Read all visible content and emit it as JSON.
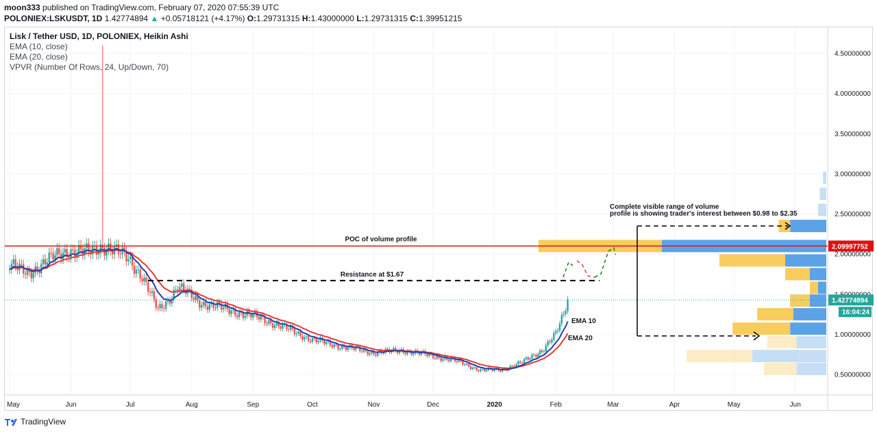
{
  "header": {
    "author": "moon333",
    "published_text": " published on TradingView.com, February 07, 2020 07:55:39 UTC",
    "symbol": "POLONIEX:LSKUSDT, 1D",
    "last": "1.42774894",
    "change": "+0.05718121 (+4.17%)",
    "o_label": "O:",
    "o": "1.29731315",
    "h_label": "H:",
    "h": "1.43000000",
    "l_label": "L:",
    "l": "1.29731315",
    "c_label": "C:",
    "c": "1.39951215"
  },
  "legend": {
    "title": "Lisk / Tether USD, 1D, POLONIEX, Heikin Ashi",
    "ema10": "EMA (10, close)",
    "ema20": "EMA (20, close)",
    "vpvr": "VPVR (Number Of Rows, 24, Up/Down, 70)"
  },
  "footer": {
    "brand": "TradingView",
    "logo_icon": "tradingview-logo-icon"
  },
  "colors": {
    "up": "#26a69a",
    "down": "#ef5350",
    "ema10": "#1e40af",
    "ema20": "#e53935",
    "poc_line": "#e01010",
    "vp_up": "#5ba3e6",
    "vp_down": "#f9cc5e",
    "last_price_bg": "#26a69a",
    "poc_label_bg": "#e01010"
  },
  "chart_data": {
    "type": "candlestick",
    "title": "Lisk / Tether USD, 1D, POLONIEX, Heikin Ashi",
    "x_ticks": [
      "May",
      "Jun",
      "Jul",
      "Aug",
      "Sep",
      "Oct",
      "Nov",
      "Dec",
      "2020",
      "Feb",
      "Mar",
      "Apr",
      "May",
      "Jun"
    ],
    "y_ticks": [
      "4.50000000",
      "4.00000000",
      "3.50000000",
      "3.00000000",
      "2.50000000",
      "2.00000000",
      "1.50000000",
      "1.00000000",
      "0.50000000"
    ],
    "ylim": [
      0.25,
      4.75
    ],
    "price_series": {
      "name": "LSKUSDT",
      "points": [
        [
          "2019-05-01",
          1.88
        ],
        [
          "2019-05-10",
          1.75
        ],
        [
          "2019-05-20",
          1.92
        ],
        [
          "2019-05-31",
          2.05
        ],
        [
          "2019-06-10",
          2.02
        ],
        [
          "2019-06-17",
          2.1
        ],
        [
          "2019-06-20",
          2.08
        ],
        [
          "2019-06-30",
          1.95
        ],
        [
          "2019-07-07",
          1.72
        ],
        [
          "2019-07-15",
          1.3
        ],
        [
          "2019-07-20",
          1.42
        ],
        [
          "2019-07-25",
          1.6
        ],
        [
          "2019-08-05",
          1.4
        ],
        [
          "2019-08-20",
          1.3
        ],
        [
          "2019-09-05",
          1.2
        ],
        [
          "2019-09-20",
          1.05
        ],
        [
          "2019-10-01",
          0.93
        ],
        [
          "2019-10-15",
          0.85
        ],
        [
          "2019-11-01",
          0.77
        ],
        [
          "2019-11-15",
          0.8
        ],
        [
          "2019-12-01",
          0.73
        ],
        [
          "2019-12-15",
          0.65
        ],
        [
          "2019-12-25",
          0.55
        ],
        [
          "2020-01-05",
          0.56
        ],
        [
          "2020-01-15",
          0.65
        ],
        [
          "2020-01-25",
          0.8
        ],
        [
          "2020-02-01",
          1.0
        ],
        [
          "2020-02-05",
          1.25
        ],
        [
          "2020-02-07",
          1.43
        ]
      ],
      "spike_high": 4.6
    },
    "ema10_endpoint": 1.15,
    "ema20_endpoint": 1.02,
    "vpvr": {
      "rows": [
        {
          "price": 2.35,
          "up": 0.22,
          "down": 0.07,
          "visible_range": true
        },
        {
          "price": 2.1,
          "up": 1.0,
          "down": 0.75,
          "visible_range": true,
          "poc": true
        },
        {
          "price": 1.92,
          "up": 0.25,
          "down": 0.4,
          "visible_range": true
        },
        {
          "price": 1.75,
          "up": 0.1,
          "down": 0.15,
          "visible_range": true
        },
        {
          "price": 1.58,
          "up": 0.05,
          "down": 0.05,
          "visible_range": true
        },
        {
          "price": 1.42,
          "up": 0.1,
          "down": 0.12,
          "visible_range": true
        },
        {
          "price": 1.25,
          "up": 0.2,
          "down": 0.22,
          "visible_range": true
        },
        {
          "price": 1.07,
          "up": 0.22,
          "down": 0.35,
          "visible_range": true
        },
        {
          "price": 0.9,
          "up": 0.18,
          "down": 0.18,
          "visible_range": false
        },
        {
          "price": 0.73,
          "up": 0.45,
          "down": 0.4,
          "visible_range": false
        },
        {
          "price": 0.57,
          "up": 0.18,
          "down": 0.2,
          "visible_range": false
        },
        {
          "price": 2.55,
          "up": 0.05,
          "down": 0.0,
          "visible_range": false
        },
        {
          "price": 2.75,
          "up": 0.04,
          "down": 0.0,
          "visible_range": false
        },
        {
          "price": 2.95,
          "up": 0.02,
          "down": 0.0,
          "visible_range": false
        }
      ]
    },
    "levels": {
      "poc": 2.09997752,
      "resistance": 1.67,
      "range_low": 0.98,
      "range_high": 2.35
    },
    "annotations": {
      "poc": "POC of volume profile",
      "resistance": "Resistance at $1.67",
      "range_line1": "Complete visible range of volume",
      "range_line2": "profile is showing trader's interest between $0.98 to $2.35",
      "ema10": "EMA 10",
      "ema20": "EMA 20"
    },
    "price_labels": {
      "poc": "2.09997752",
      "last": "1.42774894",
      "countdown": "16:04:24"
    }
  }
}
